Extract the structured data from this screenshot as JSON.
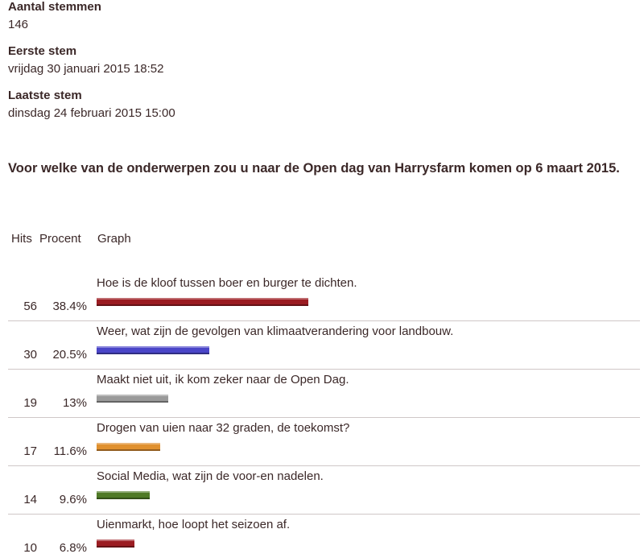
{
  "stats": {
    "votes_label": "Aantal stemmen",
    "votes_value": "146",
    "first_label": "Eerste stem",
    "first_value": "vrijdag 30 januari 2015 18:52",
    "last_label": "Laatste stem",
    "last_value": "dinsdag 24 februari 2015 15:00"
  },
  "question": "Voor welke van de onderwerpen zou u naar de Open dag van Harrysfarm komen op 6 maart 2015.",
  "table_headers": {
    "hits": "Hits",
    "percent": "Procent",
    "graph": "Graph"
  },
  "chart_data": {
    "type": "bar",
    "orientation": "horizontal",
    "title": "Voor welke van de onderwerpen zou u naar de Open dag van Harrysfarm komen op 6 maart 2015.",
    "xlabel": "",
    "ylabel": "",
    "categories": [
      "Hoe is de kloof tussen boer en burger te dichten.",
      "Weer, wat zijn de gevolgen van klimaatverandering voor landbouw.",
      "Maakt niet uit, ik kom zeker naar de Open Dag.",
      "Drogen van uien naar 32 graden, de toekomst?",
      "Social Media, wat zijn de voor-en nadelen.",
      "Uienmarkt, hoe loopt het seizoen af."
    ],
    "hits": [
      56,
      30,
      19,
      17,
      14,
      10
    ],
    "percent_labels": [
      "38.4%",
      "20.5%",
      "13%",
      "11.6%",
      "9.6%",
      "6.8%"
    ],
    "values": [
      38.4,
      20.5,
      13.0,
      11.6,
      9.6,
      6.8
    ],
    "colors": [
      "#9b1c22",
      "#4a45c8",
      "#9a9a9a",
      "#e0902e",
      "#4f7a26",
      "#9b1c22"
    ],
    "grid": false,
    "legend": "none"
  }
}
